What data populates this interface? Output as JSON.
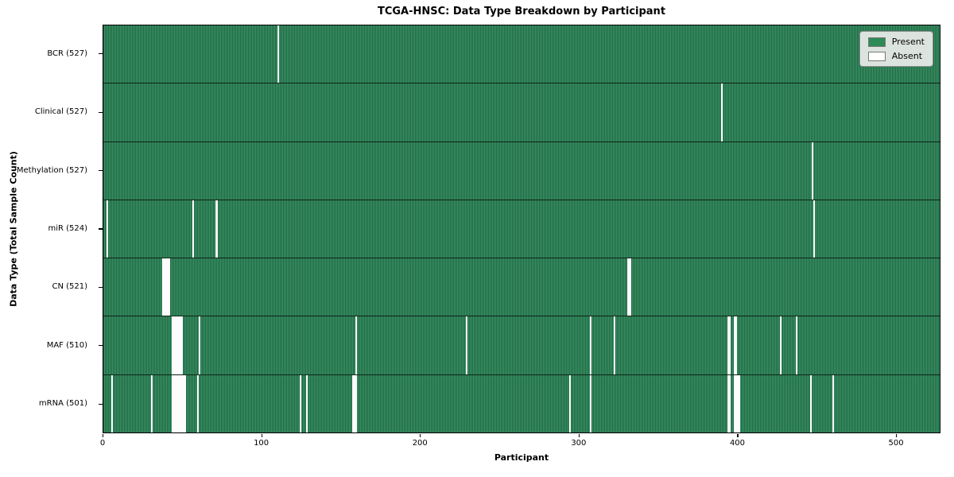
{
  "chart_data": {
    "type": "heatmap",
    "title": "TCGA-HNSC: Data Type Breakdown by Participant",
    "xlabel": "Participant",
    "ylabel": "Data Type (Total Sample Count)",
    "n_participants": 528,
    "x_ticks": [
      0,
      100,
      200,
      300,
      400,
      500
    ],
    "grid": false,
    "colors": {
      "present": "#2e8b57",
      "present_edge": "#1f6743",
      "absent": "#fcfcfc",
      "row_separator": "#0e2417"
    },
    "legend": {
      "position": "upper right",
      "entries": [
        {
          "label": "Present",
          "color": "#2e8b57"
        },
        {
          "label": "Absent",
          "color": "#ffffff"
        }
      ]
    },
    "rows": [
      {
        "name": "bcr",
        "label": "BCR (527)",
        "total": 527,
        "absent": [
          110
        ]
      },
      {
        "name": "clinical",
        "label": "Clinical (527)",
        "total": 527,
        "absent": [
          390
        ]
      },
      {
        "name": "methylation",
        "label": "Methylation (527)",
        "total": 527,
        "absent": [
          447
        ]
      },
      {
        "name": "mir",
        "label": "miR (524)",
        "total": 524,
        "absent": [
          2,
          56,
          71,
          448
        ]
      },
      {
        "name": "cn",
        "label": "CN (521)",
        "total": 521,
        "absent": [
          37,
          38,
          39,
          40,
          41,
          331,
          332
        ]
      },
      {
        "name": "maf",
        "label": "MAF (510)",
        "total": 510,
        "absent": [
          43,
          44,
          45,
          46,
          47,
          48,
          49,
          60,
          159,
          229,
          307,
          322,
          394,
          395,
          398,
          399,
          427,
          437
        ]
      },
      {
        "name": "mrna",
        "label": "mRNA (501)",
        "total": 501,
        "absent": [
          5,
          30,
          43,
          44,
          45,
          46,
          47,
          48,
          49,
          50,
          51,
          59,
          124,
          128,
          157,
          158,
          159,
          294,
          307,
          394,
          395,
          398,
          399,
          400,
          401,
          446,
          460
        ]
      }
    ]
  }
}
